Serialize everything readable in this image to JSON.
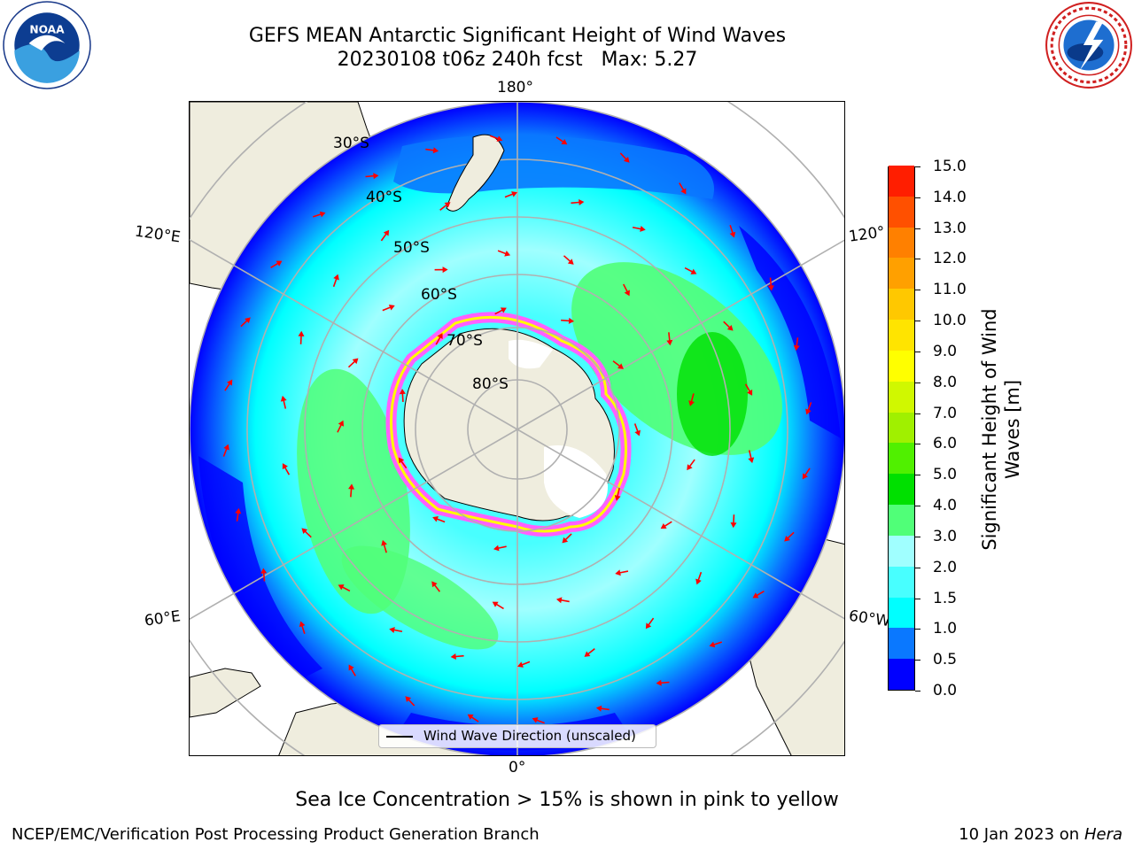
{
  "title": {
    "line1": "GEFS MEAN Antarctic Significant Height of Wind Waves",
    "line2": "20230108 t06z 240h fcst   Max: 5.27"
  },
  "map": {
    "projection": "south-polar-stereographic",
    "meridian_labels": {
      "top": "180°",
      "bottom": "0°",
      "upper_left": "120°E",
      "lower_left": "60°E",
      "upper_right": "120°",
      "lower_right": "60°W"
    },
    "latitude_labels": [
      "30°S",
      "40°S",
      "50°S",
      "60°S",
      "70°S",
      "80°S"
    ],
    "colors": {
      "land": "#efedde",
      "antarctica": "#efedde",
      "sea_ice": "#ff60ff",
      "arrow": "#ff0000",
      "gridline": "#b0b0b0"
    }
  },
  "colorbar": {
    "title_line1": "Significant Height of Wind",
    "title_line2": "Waves [m]",
    "ticks": [
      "0.0",
      "0.5",
      "1.0",
      "1.5",
      "2.0",
      "3.0",
      "4.0",
      "5.0",
      "6.0",
      "7.0",
      "8.0",
      "9.0",
      "10.0",
      "11.0",
      "12.0",
      "13.0",
      "14.0",
      "15.0"
    ],
    "colors": [
      "#0000ff",
      "#0a78ff",
      "#00ffff",
      "#48ffff",
      "#a0ffff",
      "#50ff78",
      "#00e000",
      "#50f000",
      "#a0f000",
      "#d0f800",
      "#ffff00",
      "#ffe400",
      "#ffc800",
      "#ffa000",
      "#ff8000",
      "#ff5000",
      "#ff1e00"
    ]
  },
  "legend": {
    "label": "Wind Wave Direction (unscaled)"
  },
  "note": "Sea Ice Concentration > 15% is shown in pink to yellow",
  "footer": {
    "left": "NCEP/EMC/Verification Post Processing Product Generation Branch",
    "right_date": "10 Jan 2023 on ",
    "right_machine": "Hera"
  }
}
